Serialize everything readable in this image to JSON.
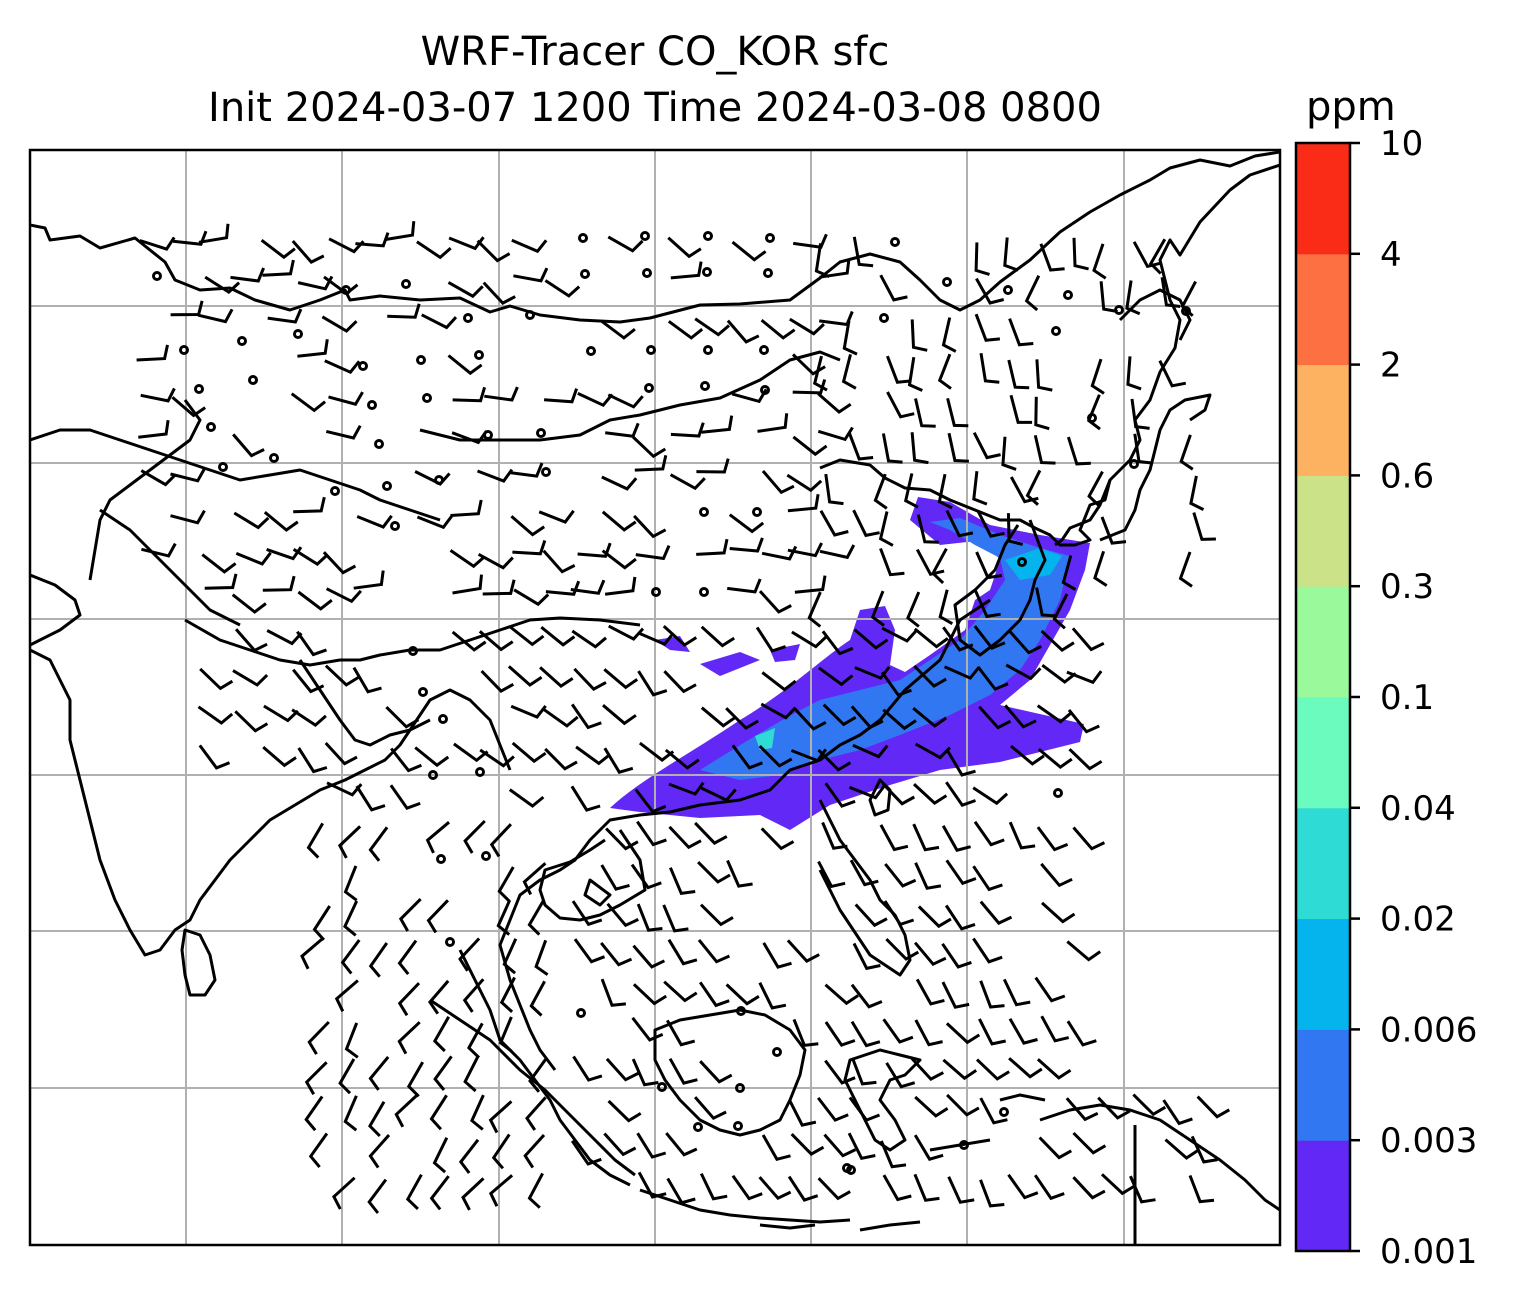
{
  "title": {
    "line1": "WRF-Tracer CO_KOR sfc",
    "line2": "Init 2024-03-07 1200 Time 2024-03-08 0800"
  },
  "colorbar": {
    "unit": "ppm",
    "levels": [
      "0.001",
      "0.003",
      "0.006",
      "0.02",
      "0.04",
      "0.1",
      "0.3",
      "0.6",
      "2",
      "4",
      "10"
    ],
    "colors": [
      "#6229f6",
      "#3277f2",
      "#05b4ec",
      "#2edcd5",
      "#6bfbbf",
      "#9af99a",
      "#cbe288",
      "#fdb262",
      "#fd7041",
      "#fb2c17"
    ]
  },
  "map": {
    "coastline_color": "#000000",
    "gridline_color": "#b0b0b0",
    "plume_colors": [
      "#6229f6",
      "#3277f2",
      "#05b4ec",
      "#2edcd5"
    ],
    "wind_symbols": [
      "wind-barb",
      "calm-circle"
    ]
  }
}
